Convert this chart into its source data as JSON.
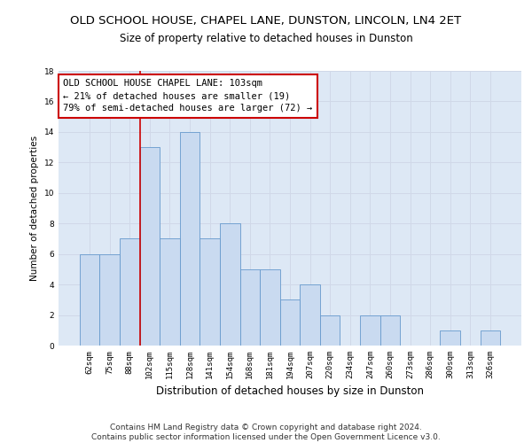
{
  "title": "OLD SCHOOL HOUSE, CHAPEL LANE, DUNSTON, LINCOLN, LN4 2ET",
  "subtitle": "Size of property relative to detached houses in Dunston",
  "xlabel": "Distribution of detached houses by size in Dunston",
  "ylabel": "Number of detached properties",
  "categories": [
    "62sqm",
    "75sqm",
    "88sqm",
    "102sqm",
    "115sqm",
    "128sqm",
    "141sqm",
    "154sqm",
    "168sqm",
    "181sqm",
    "194sqm",
    "207sqm",
    "220sqm",
    "234sqm",
    "247sqm",
    "260sqm",
    "273sqm",
    "286sqm",
    "300sqm",
    "313sqm",
    "326sqm"
  ],
  "values": [
    6,
    6,
    7,
    13,
    7,
    14,
    7,
    8,
    5,
    5,
    3,
    4,
    2,
    0,
    2,
    2,
    0,
    0,
    1,
    0,
    1
  ],
  "bar_color": "#c9daf0",
  "bar_edge_color": "#6699cc",
  "red_line_index": 2.5,
  "annotation_text": "OLD SCHOOL HOUSE CHAPEL LANE: 103sqm\n← 21% of detached houses are smaller (19)\n79% of semi-detached houses are larger (72) →",
  "annotation_box_color": "#ffffff",
  "annotation_box_edge_color": "#cc0000",
  "ylim": [
    0,
    18
  ],
  "yticks": [
    0,
    2,
    4,
    6,
    8,
    10,
    12,
    14,
    16,
    18
  ],
  "grid_color": "#d0d8e8",
  "background_color": "#dde8f5",
  "footer_text": "Contains HM Land Registry data © Crown copyright and database right 2024.\nContains public sector information licensed under the Open Government Licence v3.0.",
  "title_fontsize": 9.5,
  "subtitle_fontsize": 8.5,
  "xlabel_fontsize": 8.5,
  "ylabel_fontsize": 7.5,
  "tick_fontsize": 6.5,
  "annotation_fontsize": 7.5,
  "footer_fontsize": 6.5
}
